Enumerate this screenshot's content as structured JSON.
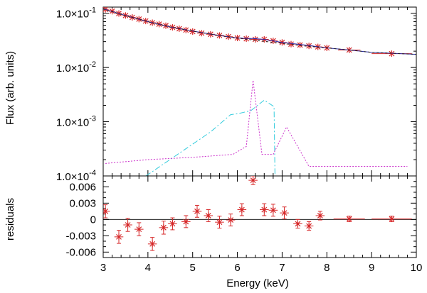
{
  "chart_data": {
    "type": "scatter",
    "xlabel": "Energy (keV)",
    "xlim": [
      3,
      10
    ],
    "x_ticks": [
      "3",
      "4",
      "5",
      "6",
      "7",
      "8",
      "9",
      "10"
    ],
    "x_tick_values": [
      3,
      4,
      5,
      6,
      7,
      8,
      9,
      10
    ],
    "panels": [
      {
        "id": "flux",
        "ylabel": "Flux (arb. units)",
        "yscale": "log",
        "ylim": [
          0.0001,
          0.13
        ],
        "y_ticks": [
          "1.0×10",
          "1.0×10",
          "1.0×10",
          "1.0×10"
        ],
        "y_tick_exponents": [
          "-1",
          "-2",
          "-3",
          "-4"
        ],
        "y_tick_values": [
          0.1,
          0.01,
          0.001,
          0.0001
        ],
        "series": [
          {
            "role": "data",
            "color": "#d62728",
            "x": [
              3.05,
              3.2,
              3.35,
              3.5,
              3.65,
              3.8,
              3.95,
              4.1,
              4.25,
              4.4,
              4.55,
              4.7,
              4.85,
              5.0,
              5.2,
              5.4,
              5.6,
              5.8,
              6.0,
              6.2,
              6.4,
              6.6,
              6.8,
              7.0,
              7.2,
              7.4,
              7.6,
              7.8,
              8.0,
              8.5,
              9.45
            ],
            "x_err": [
              0.075,
              0.075,
              0.075,
              0.075,
              0.075,
              0.075,
              0.075,
              0.075,
              0.075,
              0.075,
              0.075,
              0.075,
              0.075,
              0.075,
              0.1,
              0.1,
              0.1,
              0.1,
              0.1,
              0.1,
              0.1,
              0.1,
              0.1,
              0.1,
              0.1,
              0.1,
              0.1,
              0.1,
              0.1,
              0.25,
              0.45
            ],
            "y": [
              0.118,
              0.109,
              0.099,
              0.091,
              0.084,
              0.078,
              0.072,
              0.067,
              0.063,
              0.059,
              0.055,
              0.052,
              0.049,
              0.046,
              0.043,
              0.041,
              0.039,
              0.037,
              0.035,
              0.034,
              0.033,
              0.033,
              0.031,
              0.029,
              0.027,
              0.026,
              0.025,
              0.024,
              0.023,
              0.021,
              0.018
            ]
          },
          {
            "role": "total model",
            "color": "#2a2aa8",
            "x": [
              3.0,
              3.5,
              4.0,
              4.5,
              5.0,
              5.5,
              6.0,
              6.4,
              6.6,
              7.0,
              7.5,
              8.0,
              8.5,
              9.0,
              10.0
            ],
            "y": [
              0.121,
              0.091,
              0.07,
              0.056,
              0.047,
              0.04,
              0.035,
              0.034,
              0.033,
              0.029,
              0.026,
              0.023,
              0.021,
              0.019,
              0.0175
            ]
          },
          {
            "role": "continuum component",
            "color": "#1f1f1f",
            "dash": "3,3",
            "x": [
              3.0,
              3.5,
              4.0,
              4.5,
              5.0,
              5.5,
              6.0,
              6.5,
              7.0,
              7.5,
              8.0,
              8.5,
              9.0,
              10.0
            ],
            "y": [
              0.12,
              0.09,
              0.07,
              0.056,
              0.047,
              0.04,
              0.035,
              0.031,
              0.028,
              0.025,
              0.023,
              0.021,
              0.019,
              0.0175
            ]
          },
          {
            "role": "edge component",
            "color": "#33ccdd",
            "dash": "8,3,2,3",
            "x": [
              3.95,
              4.1,
              5.4,
              5.85,
              6.0,
              6.3,
              6.6,
              6.82,
              6.84
            ],
            "y": [
              0.0001,
              0.00012,
              0.00065,
              0.00135,
              0.0014,
              0.0016,
              0.0025,
              0.0019,
              0.0001
            ]
          },
          {
            "role": "line component",
            "color": "#cc33cc",
            "dash": "2,2",
            "x": [
              3.05,
              4.0,
              5.0,
              5.9,
              6.2,
              6.35,
              6.55,
              6.8,
              7.1,
              7.6,
              8.0,
              9.0,
              9.8
            ],
            "y": [
              0.00017,
              0.0002,
              0.00022,
              0.00025,
              0.00035,
              0.0058,
              0.00025,
              0.00025,
              0.0008,
              0.00015,
              0.00015,
              0.00015,
              0.00015
            ]
          }
        ]
      },
      {
        "id": "residuals",
        "ylabel": "residuals",
        "yscale": "linear",
        "ylim": [
          -0.007,
          0.008
        ],
        "y_ticks": [
          "0.006",
          "0.003",
          "0",
          "-0.003",
          "-0.006"
        ],
        "y_tick_values": [
          0.006,
          0.003,
          0,
          -0.003,
          -0.006
        ],
        "reference_line": 0,
        "series": [
          {
            "role": "residuals",
            "color": "#d62728",
            "x": [
              3.05,
              3.35,
              3.55,
              3.8,
              4.1,
              4.35,
              4.55,
              4.85,
              5.1,
              5.35,
              5.6,
              5.85,
              6.1,
              6.35,
              6.6,
              6.8,
              7.05,
              7.35,
              7.6,
              7.85,
              8.5,
              9.45
            ],
            "x_err": [
              0.1,
              0.1,
              0.1,
              0.1,
              0.1,
              0.1,
              0.1,
              0.1,
              0.1,
              0.1,
              0.1,
              0.1,
              0.1,
              0.1,
              0.1,
              0.1,
              0.1,
              0.1,
              0.1,
              0.1,
              0.35,
              0.45
            ],
            "y": [
              0.0015,
              -0.0032,
              -0.001,
              -0.0018,
              -0.0045,
              -0.0015,
              -0.0008,
              -0.0004,
              0.0015,
              0.0007,
              -0.0005,
              -0.0001,
              0.0018,
              0.0072,
              0.0018,
              0.0017,
              0.0012,
              -0.0008,
              -0.0012,
              0.0007,
              0.0001,
              0.0001
            ],
            "y_err": [
              0.0012,
              0.0012,
              0.0012,
              0.0012,
              0.0012,
              0.0012,
              0.0011,
              0.0011,
              0.0011,
              0.0011,
              0.0011,
              0.0011,
              0.0011,
              0.0008,
              0.0011,
              0.0011,
              0.0011,
              0.0008,
              0.0008,
              0.0008,
              0.0005,
              0.0005
            ]
          }
        ]
      }
    ]
  }
}
